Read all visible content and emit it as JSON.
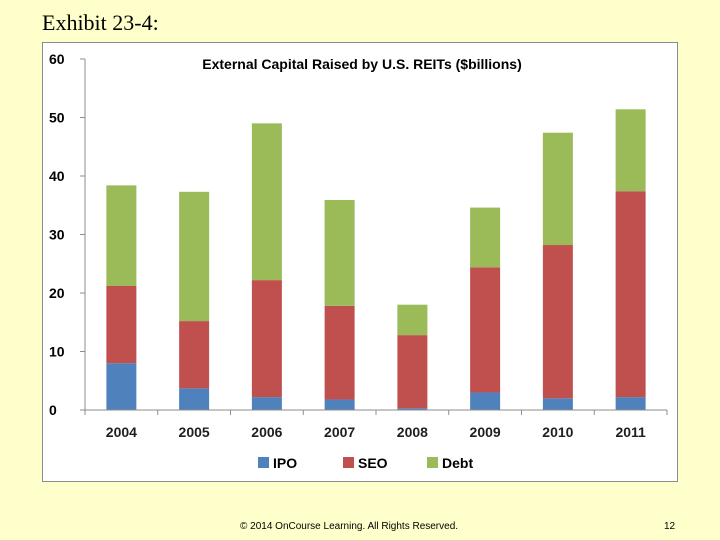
{
  "slide": {
    "title": "Exhibit 23-4:",
    "footer": "© 2014 OnCourse Learning. All Rights Reserved.",
    "page_number": "12"
  },
  "chart_data": {
    "type": "bar",
    "stacked": true,
    "title": "External Capital Raised by U.S. REITs ($billions)",
    "xlabel": "",
    "ylabel": "",
    "categories": [
      "2004",
      "2005",
      "2006",
      "2007",
      "2008",
      "2009",
      "2010",
      "2011"
    ],
    "series": [
      {
        "name": "IPO",
        "color": "#4F81BD",
        "values": [
          8.0,
          3.7,
          2.2,
          1.8,
          0.3,
          3.0,
          2.0,
          2.2
        ]
      },
      {
        "name": "SEO",
        "color": "#C0504D",
        "values": [
          13.2,
          11.5,
          20.0,
          16.0,
          12.5,
          21.4,
          26.2,
          35.2
        ]
      },
      {
        "name": "Debt",
        "color": "#9BBB59",
        "values": [
          17.2,
          22.1,
          26.8,
          18.1,
          5.2,
          10.2,
          19.2,
          14.0
        ]
      }
    ],
    "ylim": [
      0,
      60
    ],
    "yticks": [
      "0",
      "10",
      "20",
      "30",
      "40",
      "50",
      "60"
    ],
    "grid": false,
    "legend": "bottom"
  }
}
